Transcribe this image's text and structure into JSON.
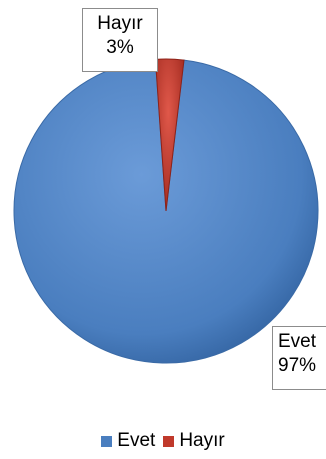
{
  "chart_data": {
    "type": "pie",
    "title": "",
    "categories": [
      "Evet",
      "Hayır"
    ],
    "values": [
      97,
      3
    ],
    "colors": [
      "#4a7ebf",
      "#c0392b"
    ],
    "data_labels": [
      {
        "category": "Evet",
        "percent": "97%"
      },
      {
        "category": "Hayır",
        "percent": "3%"
      }
    ],
    "legend": {
      "placement": "bottom",
      "entries": [
        "Evet",
        "Hayır"
      ]
    },
    "style": "3d-shaded"
  }
}
